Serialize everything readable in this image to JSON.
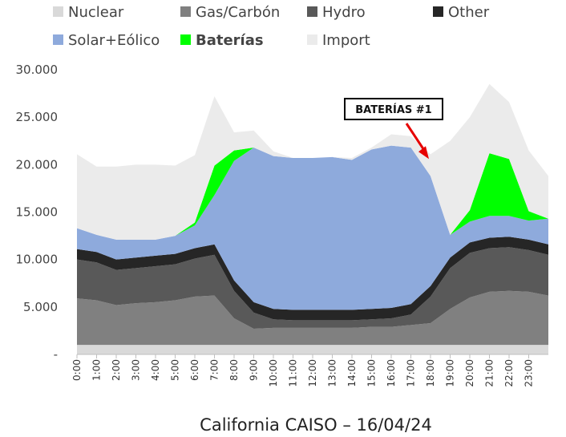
{
  "chart_data": {
    "type": "area",
    "caption": "California CAISO – 16/04/24",
    "ylim": [
      0,
      30000
    ],
    "y_ticks": [
      {
        "value": 0,
        "label": "-"
      },
      {
        "value": 5000,
        "label": "5.000"
      },
      {
        "value": 10000,
        "label": "10.000"
      },
      {
        "value": 15000,
        "label": "15.000"
      },
      {
        "value": 20000,
        "label": "20.000"
      },
      {
        "value": 25000,
        "label": "25.000"
      },
      {
        "value": 30000,
        "label": "30.000"
      }
    ],
    "x_labels": [
      "0:00",
      "1:00",
      "2:00",
      "3:00",
      "4:00",
      "5:00",
      "6:00",
      "7:00",
      "8:00",
      "9:00",
      "10:00",
      "11:00",
      "12:00",
      "13:00",
      "14:00",
      "15:00",
      "16:00",
      "17:00",
      "18:00",
      "19:00",
      "20:00",
      "21:00",
      "22:00",
      "23:00"
    ],
    "x_hours": [
      0,
      1,
      2,
      3,
      4,
      5,
      6,
      7,
      8,
      9,
      10,
      11,
      12,
      13,
      14,
      15,
      16,
      17,
      18,
      19,
      20,
      21,
      22,
      23,
      24
    ],
    "legend_position": "top",
    "stack_order": [
      "Nuclear",
      "Gas/Carbón",
      "Hydro",
      "Other",
      "Solar+Eólico",
      "Baterías",
      "Import"
    ],
    "series": [
      {
        "name": "Nuclear",
        "color": "#d9d9d9",
        "values": [
          1000,
          1000,
          1000,
          1000,
          1000,
          1000,
          1000,
          1000,
          1000,
          1000,
          1000,
          1000,
          1000,
          1000,
          1000,
          1000,
          1000,
          1000,
          1000,
          1000,
          1000,
          1000,
          1000,
          1000,
          1000
        ]
      },
      {
        "name": "Gas/Carbón",
        "color": "#808080",
        "values": [
          4900,
          4700,
          4200,
          4400,
          4500,
          4700,
          5100,
          5200,
          2800,
          1700,
          1800,
          1800,
          1800,
          1800,
          1800,
          1900,
          1900,
          2100,
          2300,
          3800,
          5000,
          5600,
          5700,
          5600,
          5200
        ]
      },
      {
        "name": "Hydro",
        "color": "#595959",
        "values": [
          4100,
          4000,
          3700,
          3700,
          3800,
          3800,
          4000,
          4300,
          2900,
          1700,
          900,
          800,
          800,
          800,
          800,
          800,
          900,
          1100,
          2800,
          4300,
          4700,
          4600,
          4600,
          4400,
          4300
        ]
      },
      {
        "name": "Other",
        "color": "#262626",
        "values": [
          1100,
          1100,
          1100,
          1100,
          1100,
          1100,
          1100,
          1100,
          1100,
          1100,
          1100,
          1100,
          1100,
          1100,
          1100,
          1100,
          1100,
          1100,
          1100,
          1100,
          1100,
          1100,
          1100,
          1100,
          1100
        ]
      },
      {
        "name": "Solar+Eólico",
        "color": "#8eaadc",
        "values": [
          2200,
          1800,
          2100,
          1900,
          1700,
          1900,
          2400,
          5200,
          12600,
          16300,
          16100,
          16000,
          16000,
          16100,
          15800,
          16800,
          17100,
          16500,
          11600,
          2400,
          2200,
          2300,
          2200,
          2000,
          2700
        ]
      },
      {
        "name": "Baterías",
        "color": "#00ff00",
        "values": [
          0,
          0,
          0,
          0,
          0,
          0,
          300,
          3100,
          1100,
          0,
          0,
          0,
          0,
          0,
          0,
          0,
          0,
          0,
          0,
          0,
          1200,
          6600,
          6000,
          1000,
          0
        ]
      },
      {
        "name": "Import",
        "color": "#ebebeb",
        "values": [
          7800,
          7200,
          7700,
          7900,
          7900,
          7400,
          7100,
          7300,
          1900,
          1800,
          500,
          0,
          0,
          0,
          200,
          200,
          1200,
          1200,
          2300,
          9900,
          9800,
          7300,
          6000,
          6400,
          4500
        ]
      }
    ],
    "annotation": {
      "label": "BATERÍAS #1",
      "x_hour": 18,
      "y_value": 20600
    }
  }
}
